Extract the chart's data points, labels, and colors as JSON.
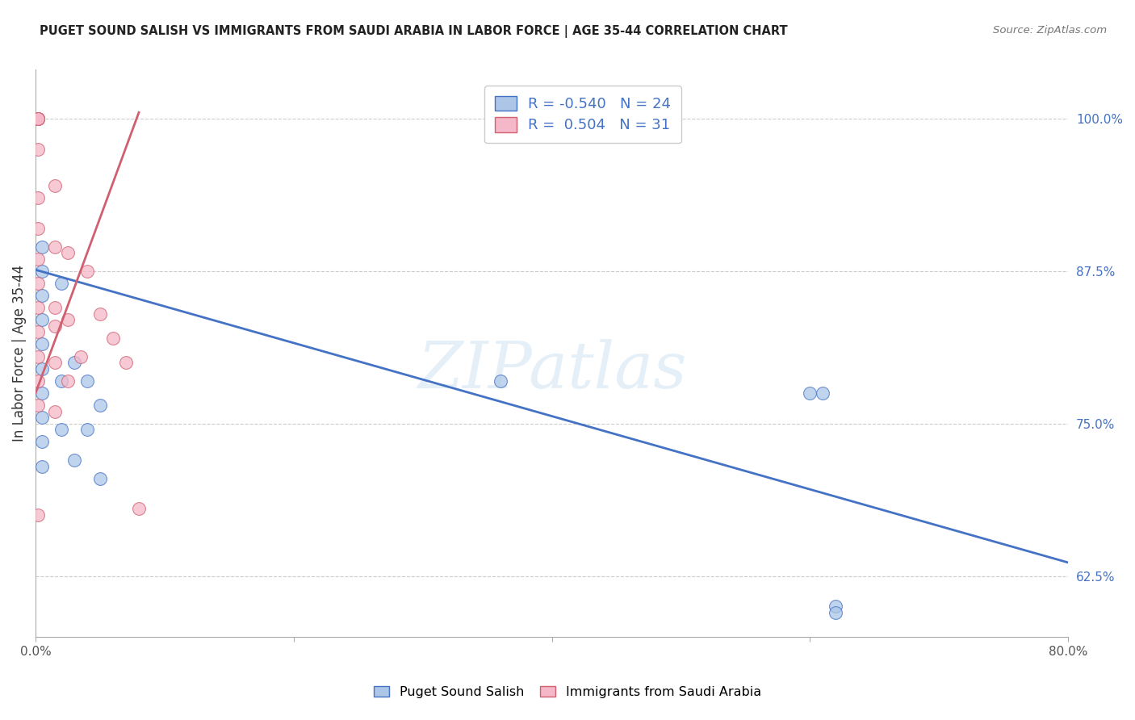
{
  "title": "PUGET SOUND SALISH VS IMMIGRANTS FROM SAUDI ARABIA IN LABOR FORCE | AGE 35-44 CORRELATION CHART",
  "source": "Source: ZipAtlas.com",
  "ylabel": "In Labor Force | Age 35-44",
  "xmin": 0.0,
  "xmax": 0.8,
  "ymin": 0.575,
  "ymax": 1.04,
  "xticks": [
    0.0,
    0.2,
    0.4,
    0.6,
    0.8
  ],
  "xtick_labels": [
    "0.0%",
    "",
    "",
    "",
    "80.0%"
  ],
  "yticks": [
    0.625,
    0.75,
    0.875,
    1.0
  ],
  "ytick_labels": [
    "62.5%",
    "75.0%",
    "87.5%",
    "100.0%"
  ],
  "blue_label": "Puget Sound Salish",
  "pink_label": "Immigrants from Saudi Arabia",
  "blue_R": "-0.540",
  "blue_N": "24",
  "pink_R": "0.504",
  "pink_N": "31",
  "blue_color": "#adc6e8",
  "pink_color": "#f4b8c8",
  "blue_line_color": "#4472c4",
  "pink_line_color": "#d06070",
  "watermark": "ZIPatlas",
  "blue_points_x": [
    0.005,
    0.005,
    0.005,
    0.005,
    0.005,
    0.005,
    0.005,
    0.005,
    0.005,
    0.005,
    0.02,
    0.02,
    0.02,
    0.03,
    0.03,
    0.04,
    0.04,
    0.05,
    0.05,
    0.36,
    0.6,
    0.61,
    0.62,
    0.62
  ],
  "blue_points_y": [
    0.895,
    0.875,
    0.855,
    0.835,
    0.815,
    0.795,
    0.775,
    0.755,
    0.735,
    0.715,
    0.865,
    0.785,
    0.745,
    0.8,
    0.72,
    0.785,
    0.745,
    0.765,
    0.705,
    0.785,
    0.775,
    0.775,
    0.6,
    0.595
  ],
  "pink_points_x": [
    0.002,
    0.002,
    0.002,
    0.002,
    0.002,
    0.002,
    0.002,
    0.002,
    0.002,
    0.002,
    0.002,
    0.002,
    0.002,
    0.002,
    0.002,
    0.002,
    0.015,
    0.015,
    0.015,
    0.015,
    0.015,
    0.015,
    0.025,
    0.025,
    0.025,
    0.035,
    0.04,
    0.05,
    0.06,
    0.07,
    0.08
  ],
  "pink_points_y": [
    1.0,
    1.0,
    1.0,
    1.0,
    1.0,
    0.975,
    0.935,
    0.91,
    0.885,
    0.865,
    0.845,
    0.825,
    0.805,
    0.785,
    0.765,
    0.675,
    0.945,
    0.895,
    0.845,
    0.83,
    0.8,
    0.76,
    0.89,
    0.835,
    0.785,
    0.805,
    0.875,
    0.84,
    0.82,
    0.8,
    0.68
  ],
  "blue_trend_x": [
    0.0,
    0.8
  ],
  "blue_trend_y": [
    0.876,
    0.636
  ],
  "pink_trend_x": [
    0.0,
    0.08
  ],
  "pink_trend_y": [
    0.775,
    1.005
  ]
}
